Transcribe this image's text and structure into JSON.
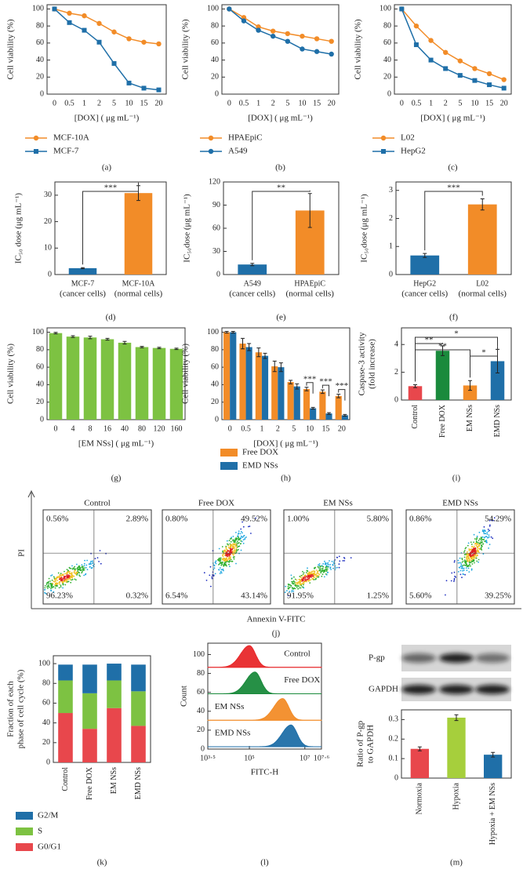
{
  "chart_data": [
    {
      "type": "line",
      "panel": "(a)",
      "ylabel": "Cell viability (%)",
      "xlabel": "[DOX] ( μg mL⁻¹)",
      "categories": [
        "0",
        "0.5",
        "1",
        "2",
        "5",
        "10",
        "15",
        "20"
      ],
      "ylim": [
        0,
        105
      ],
      "yticks": [
        0,
        20,
        40,
        60,
        80,
        100
      ],
      "series": [
        {
          "name": "MCF-10A",
          "color": "#f28c28",
          "marker": "circle",
          "values": [
            100,
            95,
            92,
            83,
            73,
            65,
            61,
            59
          ]
        },
        {
          "name": "MCF-7",
          "color": "#1f6fa8",
          "marker": "square",
          "values": [
            100,
            84,
            75,
            61,
            36,
            13,
            7,
            5
          ]
        }
      ]
    },
    {
      "type": "line",
      "panel": "(b)",
      "ylabel": "Cell viability (%)",
      "xlabel": "[DOX] ( μg mL⁻¹)",
      "categories": [
        "0",
        "0.5",
        "1",
        "2",
        "5",
        "10",
        "15",
        "20"
      ],
      "ylim": [
        0,
        105
      ],
      "yticks": [
        0,
        20,
        40,
        60,
        80,
        100
      ],
      "series": [
        {
          "name": "HPAEpiC",
          "color": "#f28c28",
          "marker": "circle",
          "values": [
            100,
            90,
            79,
            74,
            71,
            68,
            65,
            62
          ]
        },
        {
          "name": "A549",
          "color": "#1f6fa8",
          "marker": "circle",
          "values": [
            100,
            86,
            75,
            68,
            62,
            53,
            50,
            47
          ]
        }
      ]
    },
    {
      "type": "line",
      "panel": "(c)",
      "ylabel": "Cell viability (%)",
      "xlabel": "[DOX] ( μg mL⁻¹)",
      "categories": [
        "0",
        "0.5",
        "1",
        "2",
        "5",
        "10",
        "15",
        "20"
      ],
      "ylim": [
        0,
        105
      ],
      "yticks": [
        0,
        20,
        40,
        60,
        80,
        100
      ],
      "series": [
        {
          "name": "L02",
          "color": "#f28c28",
          "marker": "circle",
          "values": [
            100,
            80,
            63,
            49,
            39,
            30,
            24,
            17
          ]
        },
        {
          "name": "HepG2",
          "color": "#1f6fa8",
          "marker": "square",
          "values": [
            100,
            58,
            40,
            30,
            22,
            16,
            11,
            7
          ]
        }
      ]
    },
    {
      "type": "bar",
      "panel": "(d)",
      "ylabel": "IC₅₀ dose (μg mL⁻¹)",
      "categories": [
        "MCF-7",
        "MCF-10A"
      ],
      "category_notes": [
        "(cancer cells)",
        "(normal cells)"
      ],
      "values": [
        2.4,
        30.8
      ],
      "errors": [
        0.2,
        2.8
      ],
      "colors": [
        "#1f6fa8",
        "#f28c28"
      ],
      "ylim": [
        0,
        35
      ],
      "yticks": [
        0,
        10,
        20,
        30
      ],
      "significance": [
        {
          "from": 0,
          "to": 1,
          "label": "***"
        }
      ]
    },
    {
      "type": "bar",
      "panel": "(e)",
      "ylabel": "IC₅₀dose (μg mL⁻¹)",
      "categories": [
        "A549",
        "HPAEpiC"
      ],
      "category_notes": [
        "(cancer cells)",
        "(normal cells)"
      ],
      "values": [
        13,
        83
      ],
      "errors": [
        1.5,
        22
      ],
      "colors": [
        "#1f6fa8",
        "#f28c28"
      ],
      "ylim": [
        0,
        120
      ],
      "yticks": [
        0,
        30,
        60,
        90,
        120
      ],
      "significance": [
        {
          "from": 0,
          "to": 1,
          "label": "**"
        }
      ]
    },
    {
      "type": "bar",
      "panel": "(f)",
      "ylabel": "IC₅₀dose (μg mL⁻¹)",
      "categories": [
        "HepG2",
        "L02"
      ],
      "category_notes": [
        "(cancer cells)",
        "(normal cells)"
      ],
      "values": [
        0.68,
        2.5
      ],
      "errors": [
        0.07,
        0.2
      ],
      "colors": [
        "#1f6fa8",
        "#f28c28"
      ],
      "ylim": [
        0,
        3.3
      ],
      "yticks": [
        0,
        1,
        2,
        3
      ],
      "significance": [
        {
          "from": 0,
          "to": 1,
          "label": "***"
        }
      ]
    },
    {
      "type": "bar",
      "panel": "(g)",
      "ylabel": "Cell viability (%)",
      "xlabel": "[EM NSs] ( μg mL⁻¹)",
      "categories": [
        "0",
        "4",
        "8",
        "16",
        "40",
        "80",
        "120",
        "160"
      ],
      "values": [
        99,
        95,
        94,
        92,
        88,
        83,
        82,
        81
      ],
      "errors": [
        0.8,
        1,
        1.5,
        1,
        1.5,
        0.8,
        0.8,
        0.8
      ],
      "color": "#7dc242",
      "ylim": [
        0,
        105
      ],
      "yticks": [
        0,
        20,
        40,
        60,
        80,
        100
      ]
    },
    {
      "type": "grouped-bar",
      "panel": "(h)",
      "ylabel": "Cell viability (%)",
      "xlabel": "[DOX] ( μg mL⁻¹)",
      "categories": [
        "0",
        "0.5",
        "1",
        "2",
        "5",
        "10",
        "15",
        "20"
      ],
      "ylim": [
        0,
        105
      ],
      "yticks": [
        0,
        20,
        40,
        60,
        80,
        100
      ],
      "series": [
        {
          "name": "Free DOX",
          "color": "#f28c28",
          "values": [
            100,
            87,
            77,
            61,
            43,
            35,
            32,
            27
          ],
          "errors": [
            1,
            6,
            5,
            6,
            2,
            2,
            2,
            2
          ]
        },
        {
          "name": "EMD NSs",
          "color": "#1f6fa8",
          "values": [
            100,
            83,
            73,
            60,
            38,
            13,
            7,
            5
          ],
          "errors": [
            1,
            4,
            3,
            5,
            3,
            1,
            1,
            1
          ]
        }
      ],
      "significance": [
        {
          "category": 5,
          "label": "***"
        },
        {
          "category": 6,
          "label": "***"
        },
        {
          "category": 7,
          "label": "***"
        }
      ]
    },
    {
      "type": "bar",
      "panel": "(i)",
      "ylabel": [
        "Caspase-3 activity",
        "(fold increase)"
      ],
      "rotate_labels": true,
      "categories": [
        "Control",
        "Free DOX",
        "EM NSs",
        "EMD NSs"
      ],
      "values": [
        1.0,
        3.55,
        1.05,
        2.8
      ],
      "errors": [
        0.1,
        0.35,
        0.35,
        0.85
      ],
      "colors": [
        "#e8474c",
        "#1a8a3c",
        "#f28c28",
        "#1f6fa8"
      ],
      "ylim": [
        0,
        5.2
      ],
      "yticks": [
        0,
        2,
        4
      ],
      "significance": [
        {
          "from": 0,
          "to": 3,
          "label": "*"
        },
        {
          "from": 0,
          "to": 1,
          "label": "**"
        },
        {
          "from": 0,
          "to": 2,
          "label": "**"
        },
        {
          "from": 2,
          "to": 3,
          "label": "*"
        }
      ]
    },
    {
      "type": "flow",
      "panel": "(j)",
      "xlabel": "Annexin V-FITC",
      "ylabel": "PI",
      "plots": [
        {
          "title": "Control",
          "quadrants": [
            "0.56%",
            "2.89%",
            "96.23%",
            "0.32%"
          ]
        },
        {
          "title": "Free DOX",
          "quadrants": [
            "0.80%",
            "49.52%",
            "6.54%",
            "43.14%"
          ]
        },
        {
          "title": "EM NSs",
          "quadrants": [
            "1.00%",
            "5.80%",
            "91.95%",
            "1.25%"
          ]
        },
        {
          "title": "EMD NSs",
          "quadrants": [
            "0.86%",
            "54.29%",
            "5.60%",
            "39.25%"
          ]
        }
      ]
    },
    {
      "type": "stacked-bar",
      "panel": "(k)",
      "ylabel": [
        "Fraction of each",
        "phase of cell cycle (%)"
      ],
      "rotate_labels": true,
      "categories": [
        "Control",
        "Free DOX",
        "EM NSs",
        "EMD NSs"
      ],
      "ylim": [
        0,
        108
      ],
      "yticks": [
        0,
        20,
        40,
        60,
        80,
        100
      ],
      "series": [
        {
          "name": "G0/G1",
          "color": "#e8474c",
          "values": [
            50,
            34,
            55,
            37
          ]
        },
        {
          "name": "S",
          "color": "#7dc242",
          "values": [
            33,
            36,
            28,
            35
          ]
        },
        {
          "name": "G2/M",
          "color": "#1f6fa8",
          "values": [
            16,
            29,
            17,
            27
          ]
        }
      ]
    },
    {
      "type": "histogram",
      "panel": "(l)",
      "ylabel": "Count",
      "xlabel": "FITC-H",
      "xlim": [
        3.5,
        7.6
      ],
      "xticks": [
        {
          "value": 3.5,
          "label": "10³·⁵"
        },
        {
          "value": 5,
          "label": "10⁵"
        },
        {
          "value": 7,
          "label": "10⁷"
        },
        {
          "value": 7.6,
          "label": "10⁷·⁶"
        }
      ],
      "ylim": [
        0,
        112
      ],
      "yticks": [
        0,
        20,
        40,
        60,
        80,
        100
      ],
      "series": [
        {
          "name": "Control",
          "color": "#e8282a",
          "peak": 5.0
        },
        {
          "name": "Free DOX",
          "color": "#1a8a3c",
          "peak": 5.2
        },
        {
          "name": "EM NSs",
          "color": "#f28c28",
          "peak": 6.2
        },
        {
          "name": "EMD NSs",
          "color": "#1f6fa8",
          "peak": 6.5
        }
      ]
    },
    {
      "type": "bar",
      "panel": "(m)",
      "ylabel": [
        "Ratio of P-gp",
        "to GAPDH"
      ],
      "rotate_labels": true,
      "blot_labels": [
        "P-gp",
        "GAPDH"
      ],
      "categories": [
        "Normoxia",
        "Hypoxia",
        "Hypoxia + EM NSs"
      ],
      "values": [
        0.15,
        0.31,
        0.12
      ],
      "errors": [
        0.01,
        0.015,
        0.012
      ],
      "colors": [
        "#e8474c",
        "#a6cf3c",
        "#1f6fa8"
      ],
      "ylim": [
        0,
        0.35
      ],
      "yticks": [
        0,
        0.1,
        0.2,
        0.3
      ]
    }
  ]
}
